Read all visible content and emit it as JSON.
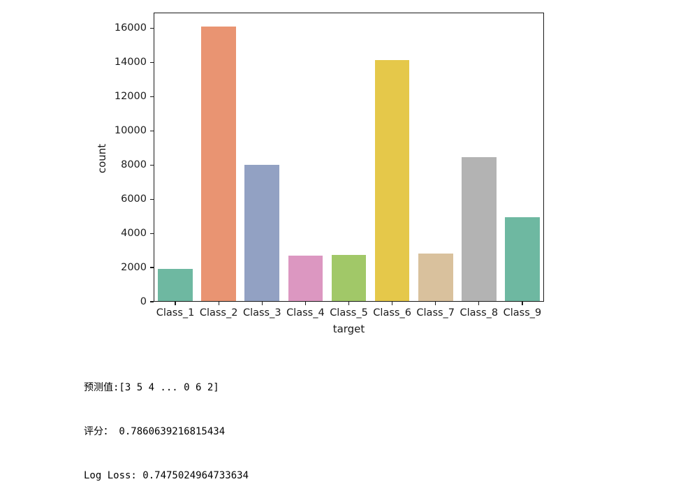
{
  "chart_data": {
    "type": "bar",
    "title": "",
    "xlabel": "target",
    "ylabel": "count",
    "categories": [
      "Class_1",
      "Class_2",
      "Class_3",
      "Class_4",
      "Class_5",
      "Class_6",
      "Class_7",
      "Class_8",
      "Class_9"
    ],
    "values": [
      1929,
      16122,
      8004,
      2691,
      2739,
      14135,
      2839,
      8464,
      4955
    ],
    "ylim": [
      0,
      16928
    ],
    "yticks": [
      0,
      2000,
      4000,
      6000,
      8000,
      10000,
      12000,
      14000,
      16000
    ],
    "bar_colors": [
      "#6eb8a1",
      "#e99472",
      "#92a1c3",
      "#dc97c1",
      "#a1c868",
      "#e5c84a",
      "#d9c19d",
      "#b3b3b3",
      "#6eb8a1"
    ],
    "bar_width_fraction": 0.8,
    "axis_color": "#1a1a1a",
    "grid": false,
    "legend": false
  },
  "output_text": {
    "prediction": "预测值:[3 5 4 ... 0 6 2]",
    "score": "评分： 0.7860639216815434",
    "log_loss": "Log Loss: 0.7475024964733634"
  }
}
